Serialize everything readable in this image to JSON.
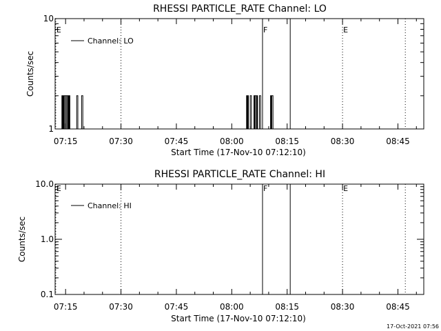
{
  "footer": {
    "timestamp": "17-Oct-2021 07:56"
  },
  "chart_data": [
    {
      "type": "line",
      "title": "RHESSI PARTICLE_RATE Channel: LO",
      "xlabel": "Start Time (17-Nov-10 07:12:10)",
      "ylabel": "Counts/sec",
      "xlim": [
        "07:12:10",
        "08:52:00"
      ],
      "ylim": [
        1,
        10
      ],
      "yscale": "log",
      "xticks": [
        "07:15",
        "07:30",
        "07:45",
        "08:00",
        "08:15",
        "08:30",
        "08:45"
      ],
      "yticks": [
        {
          "value": 1,
          "label": "1"
        },
        {
          "value": 10,
          "label": "10"
        }
      ],
      "legend": {
        "placement": "top-left",
        "entries": [
          "Channel: LO"
        ]
      },
      "series": [
        {
          "name": "Channel: LO",
          "step": true,
          "x": [
            "07:12:10",
            "07:14:00",
            "07:14:10",
            "07:14:20",
            "07:14:30",
            "07:14:40",
            "07:14:50",
            "07:15:00",
            "07:15:10",
            "07:15:20",
            "07:15:30",
            "07:15:40",
            "07:15:50",
            "07:16:00",
            "07:16:10",
            "07:16:20",
            "07:18:00",
            "07:18:10",
            "07:18:20",
            "07:19:20",
            "07:19:30",
            "07:19:40",
            "07:19:50",
            "08:04:00",
            "08:04:10",
            "08:04:20",
            "08:04:30",
            "08:05:00",
            "08:05:10",
            "08:05:20",
            "08:06:00",
            "08:06:10",
            "08:06:20",
            "08:06:30",
            "08:06:40",
            "08:06:50",
            "08:07:00",
            "08:07:30",
            "08:07:40",
            "08:07:50",
            "08:10:30",
            "08:10:40",
            "08:10:50",
            "08:11:00",
            "08:11:10",
            "08:11:20",
            "08:52:00"
          ],
          "y": [
            1,
            2,
            1,
            2,
            1,
            2,
            2,
            1,
            2,
            2,
            1,
            2,
            1,
            2,
            1,
            1,
            2,
            2,
            1,
            2,
            2,
            1,
            1,
            2,
            1,
            2,
            1,
            2,
            2,
            1,
            2,
            1,
            2,
            2,
            1,
            2,
            1,
            2,
            2,
            1,
            2,
            1,
            2,
            2,
            1,
            1,
            1
          ]
        }
      ],
      "markers": [
        {
          "time": "07:12:20",
          "style": "dotted",
          "label": "E"
        },
        {
          "time": "07:30:00",
          "style": "dotted",
          "label": ""
        },
        {
          "time": "08:08:20",
          "style": "solid",
          "label": "F"
        },
        {
          "time": "08:15:50",
          "style": "solid",
          "label": ""
        },
        {
          "time": "08:30:00",
          "style": "dotted",
          "label": "E"
        },
        {
          "time": "08:47:00",
          "style": "dotted",
          "label": ""
        }
      ]
    },
    {
      "type": "line",
      "title": "RHESSI PARTICLE_RATE Channel: HI",
      "xlabel": "Start Time (17-Nov-10 07:12:10)",
      "ylabel": "Counts/sec",
      "xlim": [
        "07:12:10",
        "08:52:00"
      ],
      "ylim": [
        0.1,
        10
      ],
      "yscale": "log",
      "xticks": [
        "07:15",
        "07:30",
        "07:45",
        "08:00",
        "08:15",
        "08:30",
        "08:45"
      ],
      "yticks": [
        {
          "value": 0.1,
          "label": "0.1"
        },
        {
          "value": 1,
          "label": "1.0"
        },
        {
          "value": 10,
          "label": "10.0"
        }
      ],
      "legend": {
        "placement": "top-left",
        "entries": [
          "Channel: HI"
        ]
      },
      "series": [
        {
          "name": "Channel: HI",
          "step": true,
          "x": [],
          "y": []
        }
      ],
      "markers": [
        {
          "time": "07:12:20",
          "style": "dotted",
          "label": "E"
        },
        {
          "time": "07:30:00",
          "style": "dotted",
          "label": ""
        },
        {
          "time": "08:08:20",
          "style": "solid",
          "label": "F"
        },
        {
          "time": "08:15:50",
          "style": "solid",
          "label": ""
        },
        {
          "time": "08:30:00",
          "style": "dotted",
          "label": "E"
        },
        {
          "time": "08:47:00",
          "style": "dotted",
          "label": ""
        }
      ]
    }
  ]
}
